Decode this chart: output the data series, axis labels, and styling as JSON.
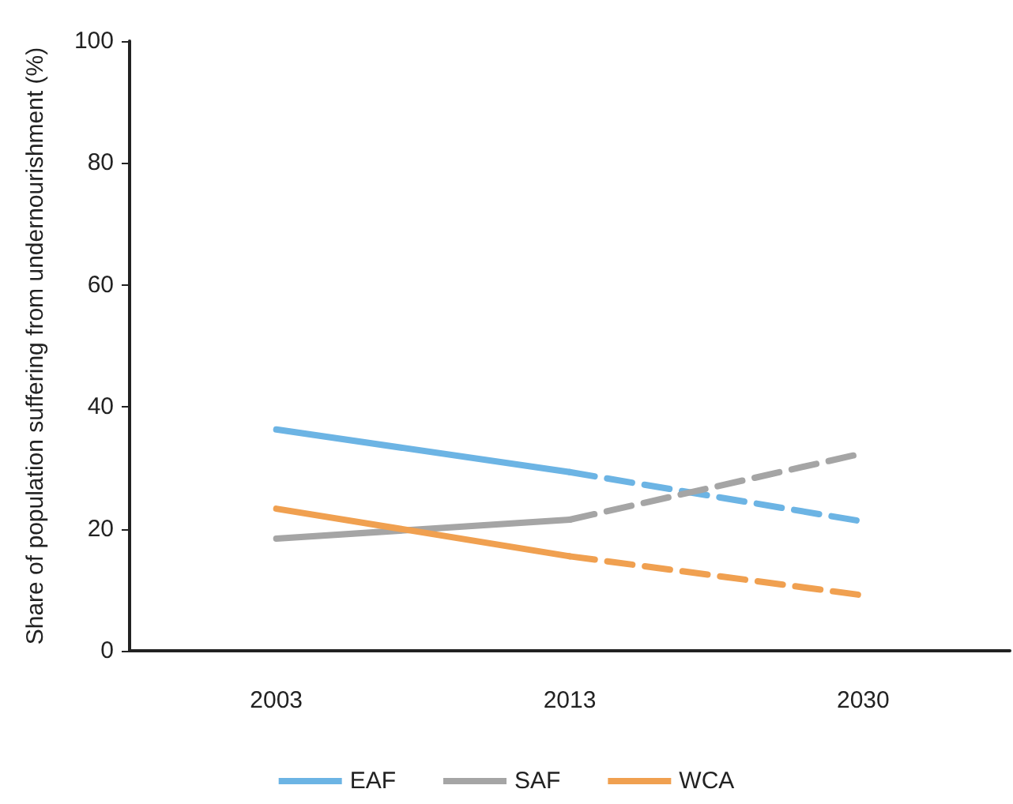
{
  "chart_data": {
    "type": "line",
    "ylabel": "Share of population suffering from undernourishment (%)",
    "categories": [
      "2003",
      "2013",
      "2030"
    ],
    "ylim": [
      0,
      100
    ],
    "yticks": [
      0,
      20,
      40,
      60,
      80,
      100
    ],
    "grid": false,
    "legend": "bottom",
    "marker": "none",
    "series": [
      {
        "name": "EAF",
        "color": "#6cb4e4",
        "line_style": "solid",
        "values": [
          36.3,
          29.3,
          null
        ]
      },
      {
        "name": "SAF",
        "color": "#a5a5a5",
        "line_style": "solid",
        "values": [
          18.4,
          21.5,
          null
        ]
      },
      {
        "name": "WCA",
        "color": "#f0a050",
        "line_style": "solid",
        "values": [
          23.3,
          15.5,
          null
        ]
      },
      {
        "color": "#6cb4e4",
        "line_style": "dashed",
        "values": [
          null,
          29.3,
          21.2
        ]
      },
      {
        "color": "#a5a5a5",
        "line_style": "dashed",
        "values": [
          null,
          21.5,
          32.4
        ]
      },
      {
        "color": "#f0a050",
        "line_style": "dashed",
        "values": [
          null,
          15.5,
          9.1
        ]
      }
    ]
  }
}
